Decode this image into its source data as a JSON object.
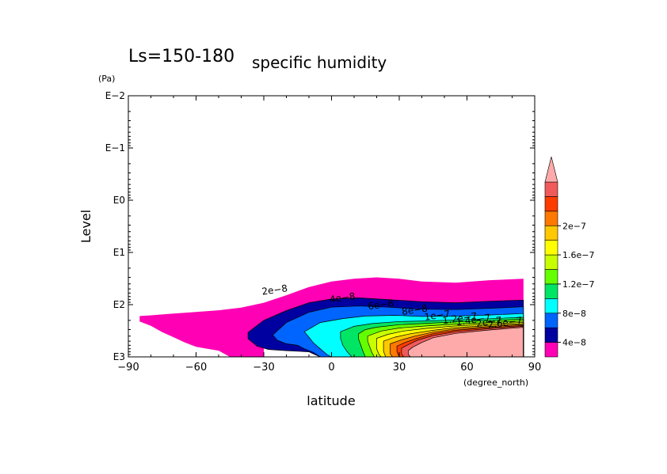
{
  "chart_data": {
    "type": "heatmap",
    "title": "Ls=150-180",
    "subtitle": "specific humidity",
    "xlabel": "latitude",
    "ylabel": "Level",
    "x_unit": "(degree_north)",
    "y_unit": "(Pa)",
    "xlim": [
      -90,
      90
    ],
    "ylim_pa": [
      0.01,
      1000
    ],
    "y_scale": "log",
    "x_ticks": [
      {
        "value": -90,
        "label": "−90"
      },
      {
        "value": -60,
        "label": "−60"
      },
      {
        "value": -30,
        "label": "−30"
      },
      {
        "value": 0,
        "label": "0"
      },
      {
        "value": 30,
        "label": "30"
      },
      {
        "value": 60,
        "label": "60"
      },
      {
        "value": 90,
        "label": "90"
      }
    ],
    "y_ticks": [
      {
        "value": 0.01,
        "label": "E−2"
      },
      {
        "value": 0.1,
        "label": "E−1"
      },
      {
        "value": 1,
        "label": "E0"
      },
      {
        "value": 10,
        "label": "E1"
      },
      {
        "value": 100,
        "label": "E2"
      },
      {
        "value": 1000,
        "label": "E3"
      }
    ],
    "colorbar": {
      "colors": [
        "#ff00b4",
        "#0000a0",
        "#0064ff",
        "#00ffff",
        "#00e664",
        "#64ff00",
        "#c8ff00",
        "#ffff00",
        "#ffc800",
        "#ff7800",
        "#ff3c00",
        "#f05a5a",
        "#ffaaaa"
      ],
      "labels": [
        {
          "value": 4e-08,
          "label": "4e−8"
        },
        {
          "value": 8e-08,
          "label": "8e−8"
        },
        {
          "value": 1.2e-07,
          "label": "1.2e−7"
        },
        {
          "value": 1.6e-07,
          "label": "1.6e−7"
        },
        {
          "value": 2e-07,
          "label": "2e−7"
        }
      ]
    },
    "contour_levels": [
      2e-08,
      4e-08,
      6e-08,
      8e-08,
      1e-07,
      1.2e-07,
      1.4e-07,
      1.6e-07,
      1.8e-07,
      2e-07,
      2.2e-07,
      2.4e-07,
      2.6e-07
    ],
    "contour_labels": [
      {
        "text": "2e−8",
        "lat": -25,
        "pa": 60
      },
      {
        "text": "4e−8",
        "lat": 5,
        "pa": 85
      },
      {
        "text": "6e−8",
        "lat": 22,
        "pa": 115
      },
      {
        "text": "8e−8",
        "lat": 37,
        "pa": 145
      },
      {
        "text": "1e−7",
        "lat": 47,
        "pa": 185
      },
      {
        "text": "1.2e−7",
        "lat": 57,
        "pa": 210
      },
      {
        "text": "1.4e−7",
        "lat": 63,
        "pa": 225
      },
      {
        "text": "2e−7",
        "lat": 70,
        "pa": 245
      },
      {
        "text": "2.6e−7",
        "lat": 77,
        "pa": 255
      }
    ],
    "regions": [
      {
        "level_index": 0,
        "points": [
          [
            -85,
            165
          ],
          [
            -85,
            210
          ],
          [
            -80,
            255
          ],
          [
            -75,
            335
          ],
          [
            -70,
            420
          ],
          [
            -65,
            530
          ],
          [
            -60,
            640
          ],
          [
            -55,
            700
          ],
          [
            -50,
            760
          ],
          [
            -45,
            1000
          ],
          [
            -30,
            1000
          ],
          [
            -30,
            700
          ],
          [
            -22,
            560
          ],
          [
            -15,
            500
          ],
          [
            -10,
            520
          ],
          [
            -5,
            600
          ],
          [
            0,
            800
          ],
          [
            5,
            900
          ],
          [
            10,
            1000
          ],
          [
            85,
            1000
          ],
          [
            85,
            32
          ],
          [
            70,
            34
          ],
          [
            55,
            38
          ],
          [
            40,
            36
          ],
          [
            30,
            32
          ],
          [
            20,
            30
          ],
          [
            10,
            32
          ],
          [
            0,
            36
          ],
          [
            -10,
            46
          ],
          [
            -20,
            66
          ],
          [
            -30,
            92
          ],
          [
            -40,
            114
          ],
          [
            -50,
            128
          ],
          [
            -60,
            138
          ],
          [
            -70,
            148
          ],
          [
            -80,
            160
          ]
        ]
      },
      {
        "level_index": 1,
        "points": [
          [
            -37,
            340
          ],
          [
            -37,
            450
          ],
          [
            -33,
            620
          ],
          [
            -28,
            720
          ],
          [
            -20,
            760
          ],
          [
            -10,
            800
          ],
          [
            -8,
            880
          ],
          [
            -5,
            1000
          ],
          [
            85,
            1000
          ],
          [
            85,
            82
          ],
          [
            70,
            86
          ],
          [
            55,
            92
          ],
          [
            40,
            88
          ],
          [
            25,
            80
          ],
          [
            12,
            74
          ],
          [
            0,
            78
          ],
          [
            -10,
            92
          ],
          [
            -20,
            130
          ],
          [
            -30,
            200
          ]
        ]
      },
      {
        "level_index": 2,
        "points": [
          [
            -26,
            380
          ],
          [
            -24,
            480
          ],
          [
            -20,
            560
          ],
          [
            -15,
            600
          ],
          [
            -12,
            700
          ],
          [
            -8,
            820
          ],
          [
            -5,
            1000
          ],
          [
            85,
            1000
          ],
          [
            85,
            110
          ],
          [
            70,
            118
          ],
          [
            55,
            124
          ],
          [
            40,
            122
          ],
          [
            25,
            112
          ],
          [
            12,
            106
          ],
          [
            0,
            112
          ],
          [
            -10,
            140
          ],
          [
            -20,
            220
          ]
        ]
      },
      {
        "level_index": 3,
        "points": [
          [
            -12,
            330
          ],
          [
            -10,
            420
          ],
          [
            -8,
            540
          ],
          [
            -5,
            700
          ],
          [
            -2,
            900
          ],
          [
            0,
            1000
          ],
          [
            85,
            1000
          ],
          [
            85,
            148
          ],
          [
            70,
            158
          ],
          [
            55,
            165
          ],
          [
            40,
            168
          ],
          [
            28,
            160
          ],
          [
            15,
            165
          ],
          [
            5,
            185
          ],
          [
            -5,
            220
          ]
        ]
      },
      {
        "level_index": 4,
        "points": [
          [
            4,
            330
          ],
          [
            4,
            440
          ],
          [
            5,
            600
          ],
          [
            7,
            800
          ],
          [
            9,
            1000
          ],
          [
            85,
            1000
          ],
          [
            85,
            175
          ],
          [
            70,
            186
          ],
          [
            55,
            196
          ],
          [
            42,
            205
          ],
          [
            30,
            210
          ],
          [
            18,
            230
          ],
          [
            10,
            260
          ]
        ]
      },
      {
        "level_index": 5,
        "points": [
          [
            12,
            360
          ],
          [
            12,
            460
          ],
          [
            13,
            600
          ],
          [
            14,
            800
          ],
          [
            15,
            1000
          ],
          [
            85,
            1000
          ],
          [
            85,
            190
          ],
          [
            70,
            202
          ],
          [
            55,
            214
          ],
          [
            42,
            228
          ],
          [
            30,
            242
          ],
          [
            20,
            270
          ],
          [
            15,
            300
          ]
        ]
      },
      {
        "level_index": 6,
        "points": [
          [
            16,
            400
          ],
          [
            16,
            500
          ],
          [
            17,
            650
          ],
          [
            18,
            850
          ],
          [
            19,
            1000
          ],
          [
            85,
            1000
          ],
          [
            85,
            205
          ],
          [
            70,
            220
          ],
          [
            55,
            236
          ],
          [
            42,
            256
          ],
          [
            30,
            280
          ],
          [
            22,
            320
          ]
        ]
      },
      {
        "level_index": 7,
        "points": [
          [
            20,
            440
          ],
          [
            20,
            560
          ],
          [
            20,
            700
          ],
          [
            21,
            900
          ],
          [
            22,
            1000
          ],
          [
            85,
            1000
          ],
          [
            85,
            218
          ],
          [
            70,
            236
          ],
          [
            55,
            256
          ],
          [
            42,
            285
          ],
          [
            32,
            320
          ],
          [
            25,
            370
          ]
        ]
      },
      {
        "level_index": 8,
        "points": [
          [
            23,
            500
          ],
          [
            23,
            620
          ],
          [
            23,
            780
          ],
          [
            24,
            1000
          ],
          [
            85,
            1000
          ],
          [
            85,
            230
          ],
          [
            70,
            250
          ],
          [
            55,
            275
          ],
          [
            45,
            310
          ],
          [
            35,
            360
          ],
          [
            28,
            420
          ]
        ]
      },
      {
        "level_index": 9,
        "points": [
          [
            26,
            560
          ],
          [
            26,
            700
          ],
          [
            26,
            880
          ],
          [
            27,
            1000
          ],
          [
            85,
            1000
          ],
          [
            85,
            240
          ],
          [
            70,
            262
          ],
          [
            55,
            292
          ],
          [
            45,
            335
          ],
          [
            37,
            400
          ],
          [
            31,
            470
          ]
        ]
      },
      {
        "level_index": 10,
        "points": [
          [
            29,
            620
          ],
          [
            29,
            800
          ],
          [
            30,
            1000
          ],
          [
            85,
            1000
          ],
          [
            85,
            250
          ],
          [
            70,
            275
          ],
          [
            55,
            310
          ],
          [
            45,
            360
          ],
          [
            38,
            440
          ],
          [
            33,
            520
          ]
        ]
      },
      {
        "level_index": 11,
        "points": [
          [
            31,
            680
          ],
          [
            31,
            880
          ],
          [
            32,
            1000
          ],
          [
            85,
            1000
          ],
          [
            85,
            260
          ],
          [
            70,
            288
          ],
          [
            55,
            330
          ],
          [
            45,
            390
          ],
          [
            38,
            480
          ],
          [
            34,
            580
          ]
        ]
      },
      {
        "level_index": 12,
        "points": [
          [
            34,
            760
          ],
          [
            34,
            900
          ],
          [
            35,
            1000
          ],
          [
            85,
            1000
          ],
          [
            85,
            272
          ],
          [
            70,
            305
          ],
          [
            55,
            355
          ],
          [
            45,
            430
          ],
          [
            40,
            530
          ],
          [
            36,
            650
          ]
        ]
      }
    ]
  }
}
